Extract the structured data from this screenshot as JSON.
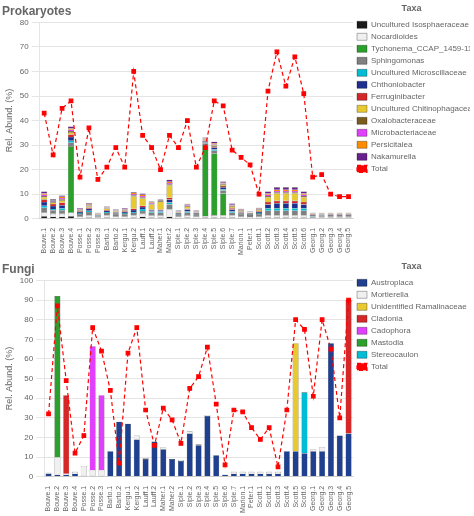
{
  "chart_data": [
    {
      "type": "bar",
      "title": "Prokaryotes",
      "ylabel": "Rel. Abund. (%)",
      "legend_title": "Taxa",
      "legend": "right",
      "stacked": true,
      "grid": true,
      "ylim": [
        0,
        80
      ],
      "yticks": [
        0,
        10,
        20,
        30,
        40,
        50,
        60,
        70,
        80
      ],
      "categories": [
        "Bouve.1",
        "Bouve.2",
        "Bouve.3",
        "Bouve.4",
        "Posse.1",
        "Posse.2",
        "Posse.3",
        "Barto.1",
        "Barto.2",
        "Kergu.1",
        "Kergu.2",
        "Lauff.1",
        "Lauff.2",
        "Maher.1",
        "Maher.2",
        "Siple.1",
        "Siple.2",
        "Siple.3",
        "Siple.4",
        "Siple.5",
        "Siple.6",
        "Siple.7",
        "Marion.1",
        "Peter.1",
        "Scott.1",
        "Scott.2",
        "Scott.3",
        "Scott.4",
        "Scott.5",
        "Scott.6",
        "Georg.1",
        "Georg.2",
        "Georg.3",
        "Georg.4",
        "Georg.5"
      ],
      "series": [
        {
          "name": "Uncultured Isosphaeraceae",
          "color": "#1a1a1a",
          "values": [
            1.0,
            0.8,
            0.8,
            1.0,
            0.3,
            0.5,
            0.2,
            0.5,
            0.3,
            0.3,
            0.5,
            0.8,
            0.5,
            0.5,
            0.8,
            0.3,
            0.5,
            0.3,
            0.5,
            0.5,
            0.5,
            0.5,
            0.3,
            0.2,
            0.3,
            0.5,
            0.5,
            0.5,
            0.5,
            0.5,
            0.2,
            0.2,
            0.2,
            0.2,
            0.2
          ]
        },
        {
          "name": "Nocardioides",
          "color": "#f0f0f0",
          "values": [
            1.5,
            1.2,
            1.2,
            1.5,
            0.5,
            0.8,
            0.3,
            0.8,
            0.5,
            0.5,
            0.8,
            1.2,
            1.0,
            1.0,
            3.0,
            0.5,
            1.0,
            0.5,
            0.5,
            1.0,
            0.8,
            0.8,
            0.5,
            0.5,
            0.5,
            0.8,
            0.8,
            0.8,
            0.8,
            0.8,
            0.2,
            0.3,
            0.3,
            0.3,
            0.3
          ]
        },
        {
          "name": "Tychonema_CCAP_1459-11",
          "color": "#2ca02c",
          "values": [
            0,
            0,
            0,
            27,
            0,
            0,
            0,
            0,
            0,
            0,
            0,
            0,
            0,
            0,
            0,
            0,
            0,
            0,
            29,
            25,
            9,
            0,
            0,
            0,
            0,
            0,
            0,
            0,
            0,
            0,
            0,
            0,
            0,
            0,
            0
          ]
        },
        {
          "name": "Sphingomonas",
          "color": "#808080",
          "values": [
            2.0,
            1.5,
            1.5,
            1.5,
            1.0,
            1.5,
            0.5,
            1.0,
            1.0,
            1.0,
            1.0,
            1.2,
            1.0,
            1.0,
            2.0,
            0.8,
            1.0,
            0.8,
            0.8,
            1.2,
            1.2,
            1.2,
            1.0,
            0.8,
            1.0,
            2.0,
            2.0,
            2.0,
            2.0,
            2.0,
            0.5,
            0.5,
            0.5,
            0.5,
            0.5
          ]
        },
        {
          "name": "Uncultured Microscillaceae",
          "color": "#00bcd4",
          "values": [
            0.8,
            0.5,
            0.8,
            0.8,
            0.5,
            0.5,
            0.3,
            0.5,
            0.3,
            0.5,
            0.5,
            0.8,
            0.5,
            0.5,
            0.8,
            0.3,
            0.5,
            0.3,
            0.3,
            0.5,
            0.5,
            0.5,
            0.3,
            0.3,
            0.5,
            1.0,
            1.0,
            1.0,
            1.0,
            1.0,
            0.3,
            0.3,
            0.2,
            0.2,
            0.2
          ]
        },
        {
          "name": "Chthoniobacter",
          "color": "#1f2f8f",
          "values": [
            1.5,
            1.2,
            1.2,
            1.5,
            0.5,
            0.8,
            0.3,
            0.5,
            0.5,
            0.5,
            0.8,
            0.8,
            0.5,
            0.5,
            1.2,
            0.3,
            0.8,
            0.3,
            0.5,
            0.8,
            0.8,
            0.8,
            0.5,
            0.3,
            0.5,
            1.5,
            2.0,
            2.0,
            2.0,
            1.5,
            0.3,
            0.3,
            0.3,
            0.3,
            0.3
          ]
        },
        {
          "name": "Ferruginibacter",
          "color": "#d62728",
          "values": [
            1.0,
            0.8,
            1.0,
            1.0,
            0.3,
            0.5,
            0.2,
            0.3,
            0.2,
            0.3,
            0.5,
            0.5,
            0.3,
            0.3,
            0.8,
            0.2,
            0.3,
            0.2,
            0.3,
            0.5,
            0.5,
            0.5,
            0.3,
            0.2,
            0.3,
            1.0,
            1.0,
            1.0,
            1.0,
            1.0,
            0.2,
            0.2,
            0.2,
            0.2,
            0.2
          ]
        },
        {
          "name": "Uncultured Chitinophagaceae",
          "color": "#e8c930",
          "values": [
            1.0,
            0.5,
            1.0,
            1.0,
            0.3,
            0.5,
            0.2,
            0.5,
            0.3,
            0.3,
            5.0,
            3.0,
            2.0,
            3.0,
            5.0,
            0.3,
            0.8,
            0.3,
            0.3,
            0.5,
            0.5,
            0.5,
            0.3,
            0.2,
            0.5,
            2.0,
            3.0,
            3.0,
            3.0,
            2.0,
            0.2,
            0.2,
            0.2,
            0.2,
            0.2
          ]
        },
        {
          "name": "Oxalobacteraceae",
          "color": "#7a5c1e",
          "values": [
            0.5,
            0.3,
            0.5,
            0.5,
            0.2,
            0.3,
            0.1,
            0.2,
            0.2,
            0.2,
            0.5,
            0.5,
            0.3,
            0.3,
            0.5,
            0.2,
            0.3,
            0.2,
            0.2,
            0.3,
            0.3,
            0.3,
            0.2,
            0.1,
            0.2,
            0.5,
            0.5,
            0.5,
            0.5,
            0.5,
            0.1,
            0.1,
            0.1,
            0.1,
            0.1
          ]
        },
        {
          "name": "Microbacteriaceae",
          "color": "#e040fb",
          "values": [
            0.5,
            0.3,
            0.5,
            0.5,
            0.2,
            0.3,
            0.1,
            0.2,
            0.2,
            0.2,
            0.5,
            0.5,
            0.3,
            0.3,
            0.5,
            0.2,
            0.3,
            0.2,
            0.2,
            0.3,
            0.3,
            0.3,
            0.2,
            0.1,
            0.2,
            0.5,
            0.5,
            0.5,
            0.5,
            0.5,
            0.1,
            0.1,
            0.1,
            0.1,
            0.1
          ]
        },
        {
          "name": "Persicitalea",
          "color": "#ff8c00",
          "values": [
            0.5,
            0.3,
            0.5,
            0.5,
            0.2,
            0.3,
            0.1,
            0.2,
            0.2,
            0.2,
            0.5,
            0.5,
            0.3,
            0.3,
            0.5,
            0.2,
            0.3,
            0.2,
            0.2,
            0.3,
            0.3,
            0.3,
            0.2,
            0.1,
            0.2,
            0.5,
            0.5,
            0.5,
            0.5,
            0.5,
            0.1,
            0.1,
            0.1,
            0.1,
            0.1
          ]
        },
        {
          "name": "Nakamurella",
          "color": "#6a1f8f",
          "values": [
            0.8,
            0.5,
            0.5,
            0.8,
            0.3,
            0.3,
            0.1,
            0.3,
            0.2,
            0.3,
            0.3,
            0.5,
            0.3,
            0.3,
            0.8,
            0.2,
            0.3,
            0.2,
            0.3,
            0.5,
            0.5,
            0.5,
            0.3,
            0.2,
            0.3,
            0.8,
            1.0,
            1.0,
            1.0,
            0.8,
            0.2,
            0.2,
            0.2,
            0.2,
            0.2
          ]
        },
        {
          "name": "Total",
          "type": "line",
          "color": "red",
          "line_style": "dashed",
          "marker": "square",
          "values": [
            43,
            26,
            45,
            48,
            17,
            37,
            16,
            21,
            29,
            21,
            60,
            34,
            29,
            20,
            34,
            29,
            40,
            21,
            29,
            48,
            46,
            28,
            25,
            22,
            10,
            52,
            68,
            54,
            66,
            51,
            17,
            18,
            10,
            9,
            9
          ]
        }
      ]
    },
    {
      "type": "bar",
      "title": "Fungi",
      "ylabel": "Rel. Abund. (%)",
      "legend_title": "Taxa",
      "legend": "right",
      "stacked": true,
      "grid": true,
      "ylim": [
        0,
        100
      ],
      "yticks": [
        0,
        10,
        20,
        30,
        40,
        50,
        60,
        70,
        80,
        90,
        100
      ],
      "categories": [
        "Bouve.1",
        "Bouve.2",
        "Bouve.3",
        "Bouve.4",
        "Posse.1",
        "Posse.2",
        "Posse.3",
        "Barto.1",
        "Barto.2",
        "Kergu.1",
        "Kergu.2",
        "Lauff.1",
        "Lauff.2",
        "Maher.1",
        "Maher.2",
        "Siple.1",
        "Siple.2",
        "Siple.3",
        "Siple.4",
        "Siple.5",
        "Siple.6",
        "Siple.7",
        "Marion.1",
        "Peter.1",
        "Scott.1",
        "Scott.2",
        "Scott.3",
        "Scott.4",
        "Scott.5",
        "Scott.6",
        "Georg.1",
        "Georg.2",
        "Georg.3",
        "Georg.4",
        "Georg.5"
      ],
      "series": [
        {
          "name": "Austroplaca",
          "color": "#1f3f8f",
          "values": [
            1.5,
            1.0,
            1.0,
            1.5,
            0.5,
            0.5,
            0.5,
            13,
            28,
            27,
            19,
            9,
            18,
            14,
            9,
            8,
            22,
            16,
            31,
            11,
            1.0,
            1.5,
            1.5,
            1.5,
            1.5,
            1.5,
            1.5,
            13,
            13,
            12,
            13,
            13,
            68,
            21,
            22
          ]
        },
        {
          "name": "Mortierella",
          "color": "#f0f0f0",
          "values": [
            0.5,
            9.0,
            0.5,
            1.0,
            5.0,
            3.0,
            3.0,
            0,
            0,
            0,
            2.0,
            0.5,
            0,
            1.0,
            0,
            0.5,
            1.0,
            0.5,
            0.5,
            0,
            0,
            1.0,
            1.0,
            1.0,
            1.0,
            1.0,
            1.0,
            0,
            0,
            0,
            1.0,
            2.0,
            0,
            0,
            0
          ]
        },
        {
          "name": "Unidentified Ramalinaceae",
          "color": "#e8c930",
          "values": [
            0,
            0,
            0,
            0,
            0,
            0,
            0,
            0,
            0,
            0,
            0,
            0,
            0,
            0,
            0,
            0,
            0,
            0,
            0,
            0,
            0,
            0,
            0,
            0,
            0,
            0,
            0,
            0,
            55,
            0,
            0,
            0,
            0,
            0,
            0
          ]
        },
        {
          "name": "Cladonia",
          "color": "#d62728",
          "values": [
            0,
            0,
            40,
            0,
            0,
            0,
            0,
            0,
            0,
            0,
            0,
            0,
            0,
            0,
            0,
            0,
            0,
            0,
            0,
            0,
            0,
            0,
            0,
            0,
            0,
            0,
            0,
            0,
            0,
            0,
            0,
            0,
            0,
            0,
            68
          ]
        },
        {
          "name": "Cadophora",
          "color": "#e040fb",
          "values": [
            0,
            0,
            0,
            0,
            0,
            63,
            38,
            0,
            0,
            0,
            0,
            0,
            0,
            0,
            0,
            0,
            0,
            0,
            0,
            0,
            0,
            0,
            0,
            0,
            0,
            0,
            0,
            0,
            0,
            0,
            0,
            0,
            0,
            0,
            0
          ]
        },
        {
          "name": "Mastodia",
          "color": "#2ca02c",
          "values": [
            0,
            82,
            0,
            0,
            0,
            0,
            0,
            0,
            0,
            0,
            0,
            0,
            0,
            0,
            0,
            0,
            0,
            0,
            0,
            0,
            0,
            0,
            0,
            0,
            0,
            0,
            0,
            0,
            0,
            0,
            0,
            0,
            0,
            0,
            0
          ]
        },
        {
          "name": "Stereocaulon",
          "color": "#00bcd4",
          "values": [
            0,
            0,
            0,
            0,
            0,
            0,
            0,
            0,
            0,
            0,
            0,
            0,
            0,
            0,
            0,
            0,
            0,
            0,
            0,
            0,
            0,
            0,
            0,
            0,
            0,
            0,
            0,
            0,
            0,
            31,
            0,
            0,
            0,
            0,
            0
          ]
        },
        {
          "name": "Total",
          "type": "line",
          "color": "red",
          "line_style": "dashed",
          "marker": "square",
          "values": [
            32,
            87,
            49,
            12,
            21,
            76,
            64,
            44,
            7,
            63,
            76,
            34,
            16,
            35,
            29,
            17,
            45,
            51,
            66,
            37,
            6,
            34,
            33,
            25,
            19,
            25,
            5,
            34,
            80,
            75,
            41,
            80,
            65,
            30,
            90
          ]
        }
      ]
    }
  ]
}
